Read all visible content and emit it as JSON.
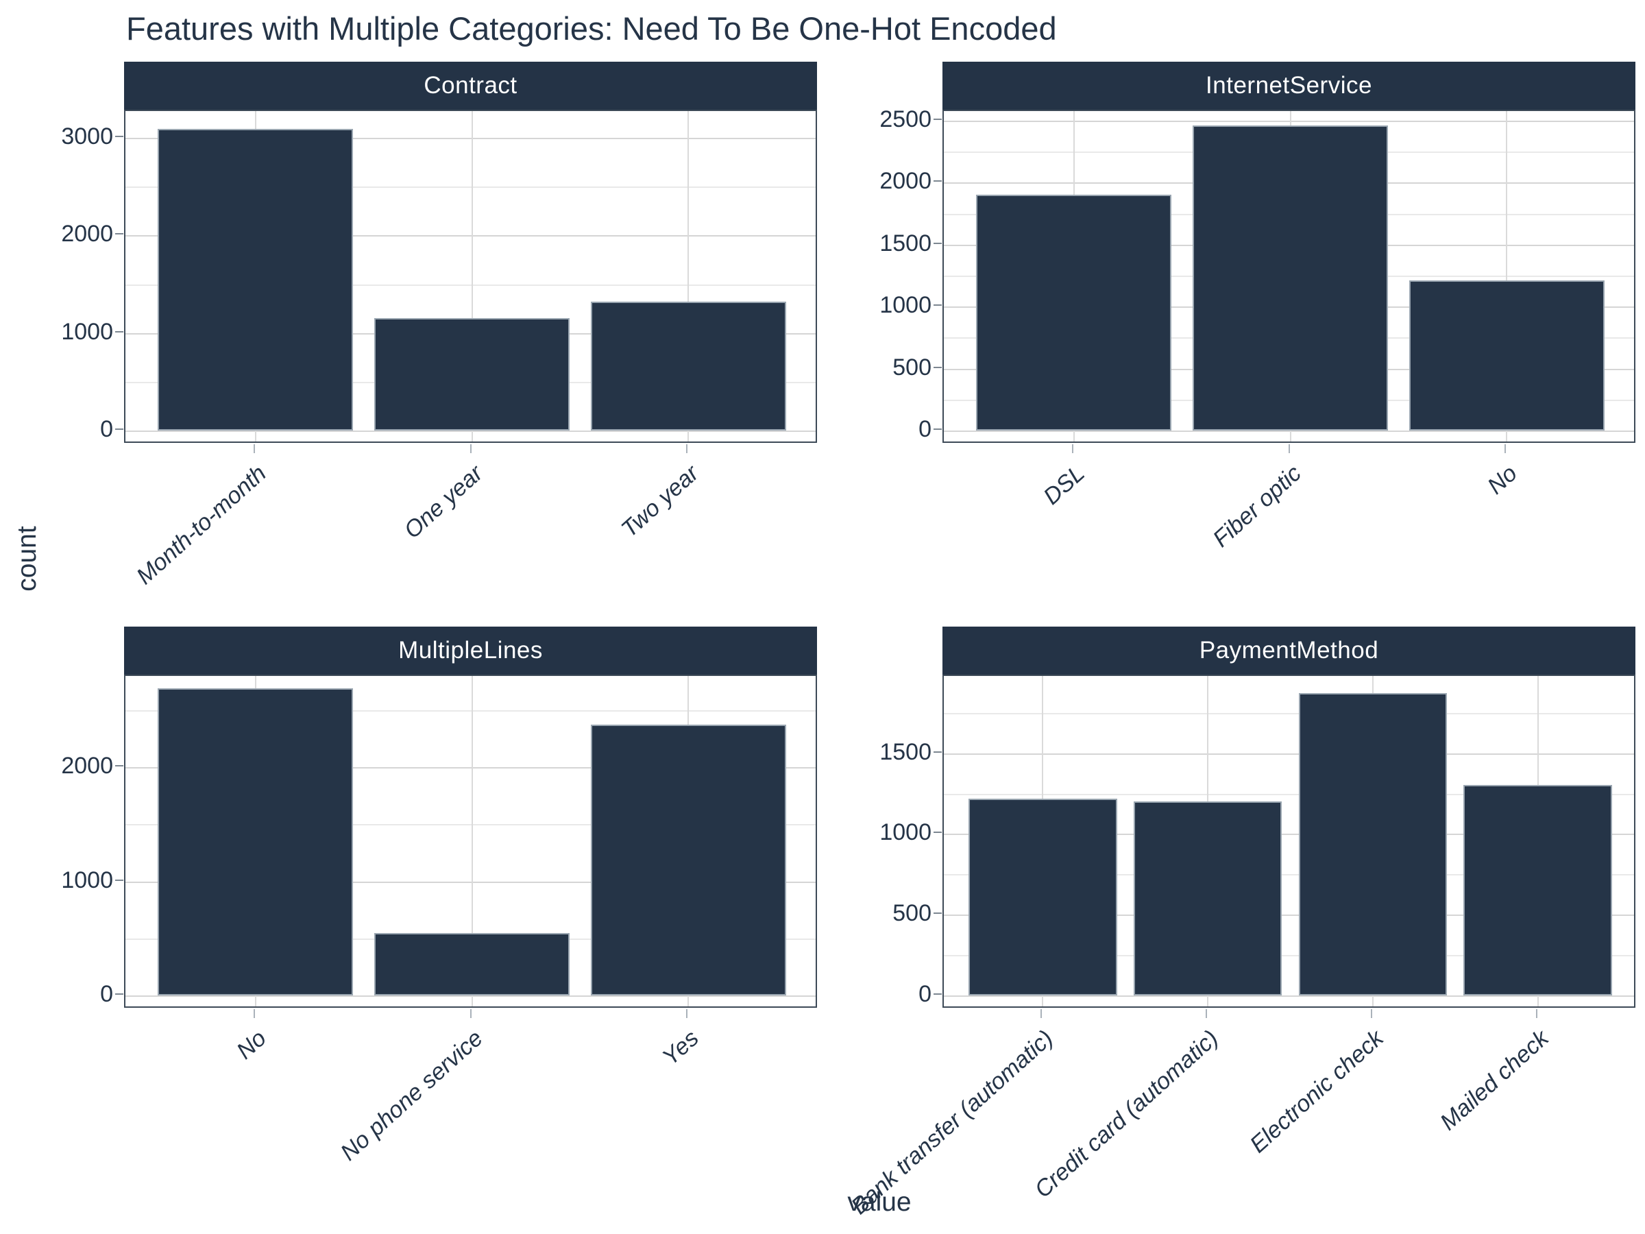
{
  "title": "Features with Multiple Categories: Need To Be One-Hot Encoded",
  "axes": {
    "x_label": "value",
    "y_label": "count"
  },
  "colors": {
    "ink": "#253447",
    "bar_fill": "#253447",
    "bar_edge": "#9aa6b1",
    "strip_bg": "#243346",
    "strip_text": "#ffffff",
    "grid_major": "#d5d5d5",
    "grid_minor": "#e9e9e9",
    "panel_border": "#3d4a57",
    "background": "#ffffff"
  },
  "chart_data": [
    {
      "type": "bar",
      "facet": "Contract",
      "categories": [
        "Month-to-month",
        "One year",
        "Two year"
      ],
      "values": [
        3090,
        1150,
        1320
      ],
      "y_ticks_major": [
        0,
        1000,
        2000,
        3000
      ],
      "y_ticks_minor": [
        500,
        1500,
        2500
      ],
      "ylim": [
        0,
        3275
      ],
      "grid": true,
      "legend": "none"
    },
    {
      "type": "bar",
      "facet": "InternetService",
      "categories": [
        "DSL",
        "Fiber optic",
        "No"
      ],
      "values": [
        1900,
        2460,
        1210
      ],
      "y_ticks_major": [
        0,
        500,
        1000,
        1500,
        2000,
        2500
      ],
      "y_ticks_minor": [
        250,
        750,
        1250,
        1750,
        2250
      ],
      "ylim": [
        0,
        2577
      ],
      "grid": true,
      "legend": "none"
    },
    {
      "type": "bar",
      "facet": "MultipleLines",
      "categories": [
        "No",
        "No phone service",
        "Yes"
      ],
      "values": [
        2690,
        545,
        2375
      ],
      "y_ticks_major": [
        0,
        1000,
        2000
      ],
      "y_ticks_minor": [
        500,
        1500,
        2500
      ],
      "ylim": [
        0,
        2800
      ],
      "grid": true,
      "legend": "none"
    },
    {
      "type": "bar",
      "facet": "PaymentMethod",
      "categories": [
        "Bank transfer (automatic)",
        "Credit card (automatic)",
        "Electronic check",
        "Mailed check"
      ],
      "values": [
        1220,
        1200,
        1870,
        1305
      ],
      "y_ticks_major": [
        0,
        500,
        1000,
        1500
      ],
      "y_ticks_minor": [
        250,
        750,
        1250,
        1750
      ],
      "ylim": [
        0,
        1978
      ],
      "grid": true,
      "legend": "none"
    }
  ]
}
